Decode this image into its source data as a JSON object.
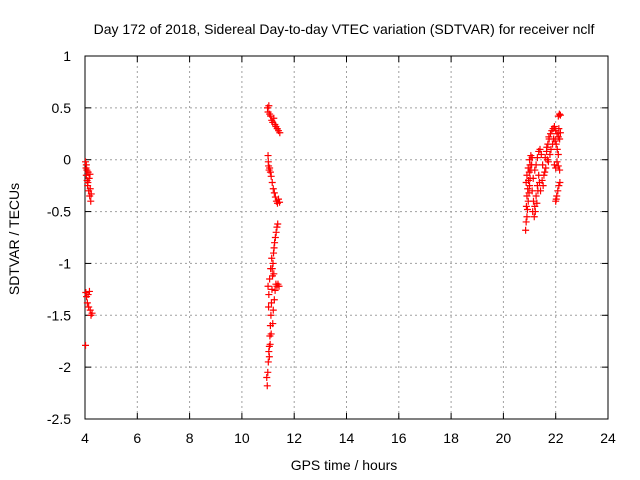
{
  "chart_data": {
    "type": "scatter",
    "title": "Day 172 of 2018, Sidereal Day-to-day VTEC variation (SDTVAR) for receiver nclf",
    "xlabel": "GPS time / hours",
    "ylabel": "SDTVAR / TECUs",
    "xlim": [
      4,
      24
    ],
    "ylim": [
      -2.5,
      1
    ],
    "x_ticks": [
      4,
      6,
      8,
      10,
      12,
      14,
      16,
      18,
      20,
      22,
      24
    ],
    "y_ticks": [
      -2.5,
      -2,
      -1.5,
      -1,
      -0.5,
      0,
      0.5,
      1
    ],
    "x_tick_labels": [
      "4",
      "6",
      "8",
      "10",
      "12",
      "14",
      "16",
      "18",
      "20",
      "22",
      "24"
    ],
    "y_tick_labels": [
      "-2.5",
      "-2",
      "-1.5",
      "-1",
      "-0.5",
      "0",
      "0.5",
      "1"
    ],
    "grid": true,
    "marker": "+",
    "color": "#ff0000",
    "series": [
      {
        "name": "SDTVAR",
        "points": [
          [
            4.02,
            -0.02
          ],
          [
            4.04,
            -0.08
          ],
          [
            4.05,
            -0.15
          ],
          [
            4.07,
            -0.1
          ],
          [
            4.08,
            -0.2
          ],
          [
            4.1,
            -0.25
          ],
          [
            4.12,
            -0.12
          ],
          [
            4.14,
            -0.3
          ],
          [
            4.16,
            -0.18
          ],
          [
            4.18,
            -0.35
          ],
          [
            4.2,
            -0.28
          ],
          [
            4.22,
            -0.4
          ],
          [
            4.24,
            -0.33
          ],
          [
            4.05,
            -0.05
          ],
          [
            4.11,
            -0.22
          ],
          [
            4.19,
            -0.14
          ],
          [
            4.03,
            -1.28
          ],
          [
            4.06,
            -1.32
          ],
          [
            4.09,
            -1.38
          ],
          [
            4.12,
            -1.3
          ],
          [
            4.14,
            -1.42
          ],
          [
            4.17,
            -1.27
          ],
          [
            4.2,
            -1.45
          ],
          [
            4.23,
            -1.5
          ],
          [
            4.27,
            -1.48
          ],
          [
            4.02,
            -1.79
          ],
          [
            10.98,
            0.5
          ],
          [
            11.0,
            0.46
          ],
          [
            11.03,
            0.52
          ],
          [
            11.06,
            0.44
          ],
          [
            11.1,
            0.42
          ],
          [
            11.14,
            0.38
          ],
          [
            11.18,
            0.36
          ],
          [
            11.22,
            0.4
          ],
          [
            11.26,
            0.34
          ],
          [
            11.3,
            0.32
          ],
          [
            11.35,
            0.3
          ],
          [
            11.4,
            0.28
          ],
          [
            11.45,
            0.26
          ],
          [
            11.0,
            0.04
          ],
          [
            11.01,
            -0.02
          ],
          [
            11.02,
            -0.06
          ],
          [
            11.04,
            -0.1
          ],
          [
            11.06,
            -0.08
          ],
          [
            11.09,
            -0.12
          ],
          [
            11.12,
            -0.16
          ],
          [
            11.16,
            -0.22
          ],
          [
            11.2,
            -0.28
          ],
          [
            11.24,
            -0.32
          ],
          [
            11.28,
            -0.36
          ],
          [
            11.32,
            -0.4
          ],
          [
            11.36,
            -0.42
          ],
          [
            11.4,
            -0.38
          ],
          [
            11.44,
            -0.41
          ],
          [
            10.95,
            -2.1
          ],
          [
            10.97,
            -2.18
          ],
          [
            10.99,
            -2.05
          ],
          [
            11.01,
            -1.95
          ],
          [
            11.03,
            -1.85
          ],
          [
            11.05,
            -1.8
          ],
          [
            11.07,
            -1.7
          ],
          [
            11.09,
            -1.6
          ],
          [
            11.11,
            -1.5
          ],
          [
            11.13,
            -1.38
          ],
          [
            11.15,
            -1.25
          ],
          [
            11.17,
            -1.12
          ],
          [
            11.19,
            -1.0
          ],
          [
            11.21,
            -0.9
          ],
          [
            11.23,
            -0.85
          ],
          [
            11.25,
            -0.8
          ],
          [
            11.28,
            -0.75
          ],
          [
            11.31,
            -0.7
          ],
          [
            11.34,
            -0.65
          ],
          [
            11.37,
            -0.62
          ],
          [
            11.0,
            -1.22
          ],
          [
            11.03,
            -1.3
          ],
          [
            11.06,
            -1.15
          ],
          [
            11.1,
            -1.05
          ],
          [
            11.14,
            -0.95
          ],
          [
            11.02,
            -1.42
          ],
          [
            11.08,
            -1.78
          ],
          [
            11.12,
            -1.68
          ],
          [
            11.18,
            -1.58
          ],
          [
            11.2,
            -1.45
          ],
          [
            11.24,
            -1.35
          ],
          [
            11.27,
            -1.26
          ],
          [
            11.3,
            -1.2
          ],
          [
            11.34,
            -1.22
          ],
          [
            11.38,
            -1.2
          ],
          [
            11.42,
            -1.22
          ],
          [
            11.16,
            -1.05
          ],
          [
            11.22,
            -1.1
          ],
          [
            11.05,
            -1.9
          ],
          [
            20.85,
            -0.68
          ],
          [
            20.87,
            -0.6
          ],
          [
            20.9,
            -0.55
          ],
          [
            20.92,
            -0.48
          ],
          [
            20.95,
            -0.4
          ],
          [
            20.98,
            -0.32
          ],
          [
            21.0,
            -0.25
          ],
          [
            21.02,
            -0.18
          ],
          [
            21.05,
            -0.1
          ],
          [
            21.08,
            -0.05
          ],
          [
            21.1,
            0.02
          ],
          [
            20.88,
            -0.45
          ],
          [
            20.9,
            -0.35
          ],
          [
            20.93,
            -0.28
          ],
          [
            20.96,
            -0.2
          ],
          [
            20.99,
            -0.12
          ],
          [
            21.02,
            -0.05
          ],
          [
            20.87,
            -0.22
          ],
          [
            20.9,
            -0.15
          ],
          [
            20.95,
            -0.08
          ],
          [
            21.0,
            0.0
          ],
          [
            21.05,
            0.04
          ],
          [
            21.1,
            -0.3
          ],
          [
            21.15,
            -0.4
          ],
          [
            21.2,
            -0.45
          ],
          [
            21.25,
            -0.35
          ],
          [
            21.3,
            -0.25
          ],
          [
            21.35,
            -0.15
          ],
          [
            21.12,
            -0.5
          ],
          [
            21.18,
            -0.55
          ],
          [
            21.22,
            -0.5
          ],
          [
            21.28,
            -0.42
          ],
          [
            21.32,
            -0.3
          ],
          [
            21.14,
            -0.18
          ],
          [
            21.2,
            -0.1
          ],
          [
            21.25,
            -0.05
          ],
          [
            21.3,
            0.02
          ],
          [
            21.35,
            0.08
          ],
          [
            21.4,
            0.1
          ],
          [
            21.45,
            0.05
          ],
          [
            21.5,
            -0.05
          ],
          [
            21.55,
            -0.15
          ],
          [
            21.48,
            -0.2
          ],
          [
            21.52,
            -0.25
          ],
          [
            21.38,
            -0.22
          ],
          [
            21.42,
            -0.3
          ],
          [
            21.6,
            0.02
          ],
          [
            21.65,
            0.08
          ],
          [
            21.7,
            0.15
          ],
          [
            21.75,
            0.2
          ],
          [
            21.8,
            0.25
          ],
          [
            21.85,
            0.28
          ],
          [
            21.9,
            0.3
          ],
          [
            21.95,
            0.32
          ],
          [
            22.0,
            0.28
          ],
          [
            22.05,
            0.25
          ],
          [
            22.1,
            0.22
          ],
          [
            22.15,
            0.2
          ],
          [
            21.72,
            -0.02
          ],
          [
            21.78,
            0.05
          ],
          [
            21.82,
            0.1
          ],
          [
            21.88,
            0.15
          ],
          [
            21.92,
            0.2
          ],
          [
            21.98,
            0.18
          ],
          [
            22.02,
            0.15
          ],
          [
            22.06,
            0.1
          ],
          [
            22.1,
            0.05
          ],
          [
            21.95,
            -0.05
          ],
          [
            22.0,
            -0.08
          ],
          [
            22.05,
            -0.02
          ],
          [
            22.1,
            -0.06
          ],
          [
            22.15,
            -0.1
          ],
          [
            22.0,
            -0.4
          ],
          [
            22.04,
            -0.35
          ],
          [
            22.08,
            -0.3
          ],
          [
            22.12,
            -0.25
          ],
          [
            22.16,
            -0.22
          ],
          [
            22.02,
            -0.38
          ],
          [
            22.1,
            0.42
          ],
          [
            22.14,
            0.44
          ],
          [
            22.18,
            0.43
          ],
          [
            21.62,
            -0.08
          ],
          [
            21.68,
            0.0
          ],
          [
            21.58,
            -0.12
          ],
          [
            21.66,
            0.12
          ],
          [
            21.74,
            0.22
          ],
          [
            22.12,
            0.3
          ],
          [
            22.18,
            0.26
          ]
        ]
      }
    ]
  }
}
